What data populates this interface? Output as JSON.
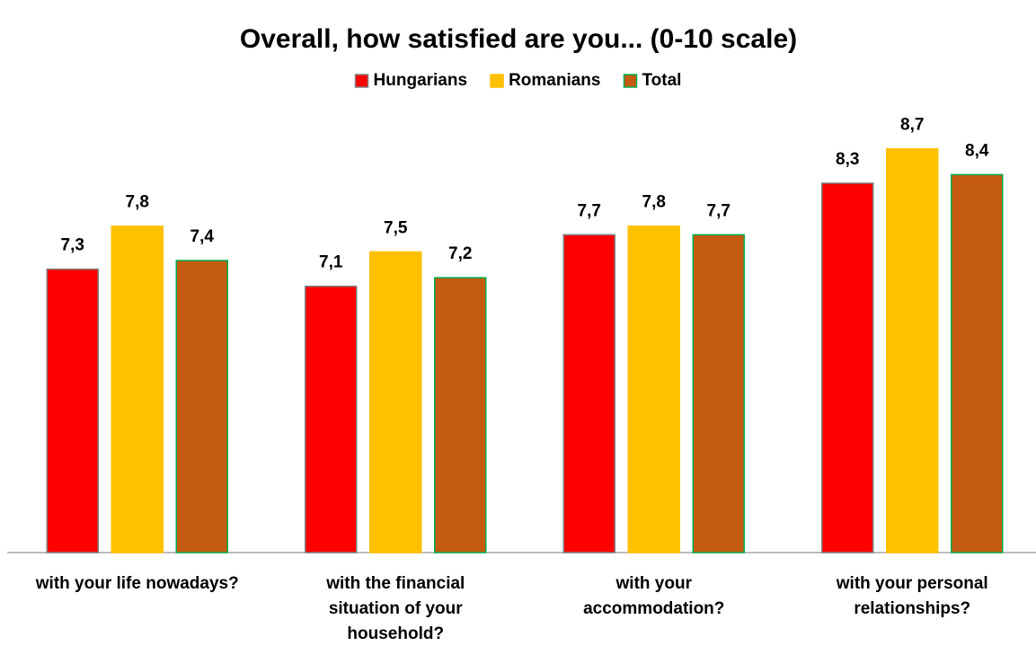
{
  "chart_data": {
    "type": "bar",
    "title": "Overall, how satisfied are you... (0-10 scale)",
    "categories": [
      "with your life nowadays?",
      "with the financial situation of your household?",
      "with your accommodation?",
      "with your personal relationships?"
    ],
    "series": [
      {
        "name": "Hungarians",
        "color": "#ff0000",
        "edgecolor": "#7f7f7f",
        "values": [
          7.3,
          7.1,
          7.7,
          8.3
        ],
        "value_labels": [
          "7,3",
          "7,1",
          "7,7",
          "8,3"
        ]
      },
      {
        "name": "Romanians",
        "color": "#ffc000",
        "edgecolor": "#ffc000",
        "values": [
          7.8,
          7.5,
          7.8,
          8.7
        ],
        "value_labels": [
          "7,8",
          "7,5",
          "7,8",
          "8,7"
        ]
      },
      {
        "name": "Total",
        "color": "#c55a11",
        "edgecolor": "#00b050",
        "values": [
          7.4,
          7.2,
          7.7,
          8.4
        ],
        "value_labels": [
          "7,4",
          "7,2",
          "7,7",
          "8,4"
        ]
      }
    ],
    "ylim": [
      4,
      9
    ],
    "legend": "top"
  }
}
